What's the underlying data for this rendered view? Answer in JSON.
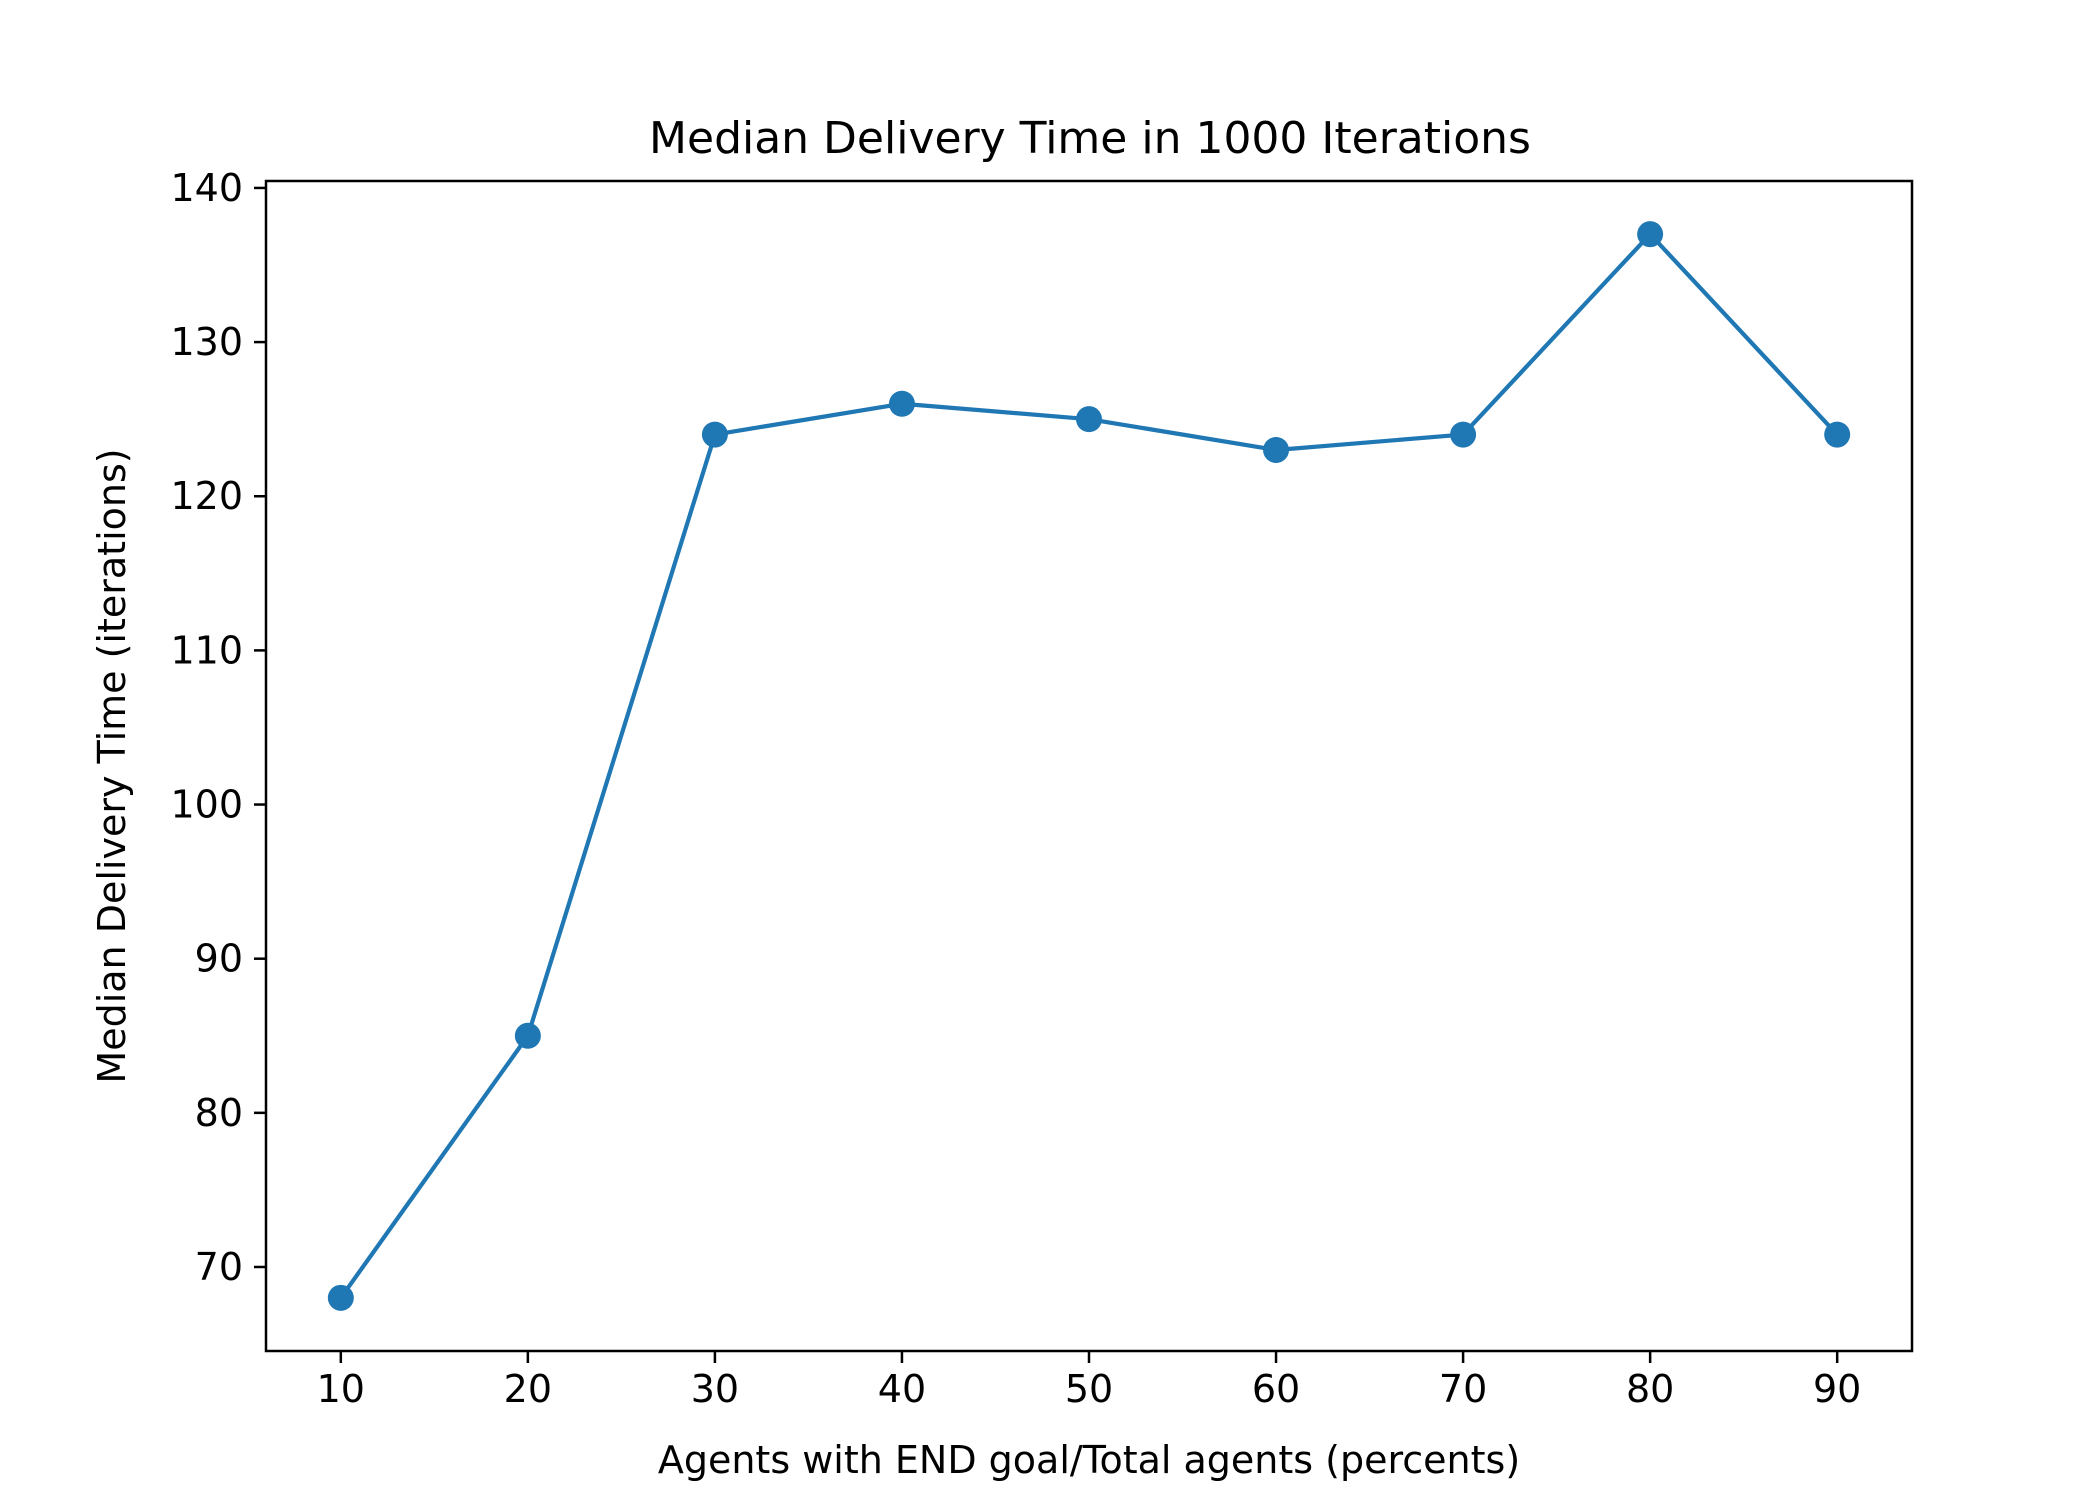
{
  "chart_data": {
    "type": "line",
    "title": "Median Delivery Time in 1000 Iterations",
    "xlabel": "Agents with END goal/Total agents (percents)",
    "ylabel": "Median Delivery Time (iterations)",
    "x": [
      10,
      20,
      30,
      40,
      50,
      60,
      70,
      80,
      90
    ],
    "series": [
      {
        "values": [
          68,
          85,
          124,
          126,
          125,
          123,
          124,
          137,
          124
        ],
        "color": "#1f77b4",
        "marker": "circle"
      }
    ],
    "xlim": [
      6,
      94
    ],
    "ylim": [
      64.55,
      140.45
    ],
    "xticks": [
      10,
      20,
      30,
      40,
      50,
      60,
      70,
      80,
      90
    ],
    "xtick_labels": [
      "10",
      "20",
      "30",
      "40",
      "50",
      "60",
      "70",
      "80",
      "90"
    ],
    "yticks": [
      70,
      80,
      90,
      100,
      110,
      120,
      130,
      140
    ],
    "ytick_labels": [
      "70",
      "80",
      "90",
      "100",
      "110",
      "120",
      "130",
      "140"
    ],
    "grid": false,
    "legend": false
  }
}
